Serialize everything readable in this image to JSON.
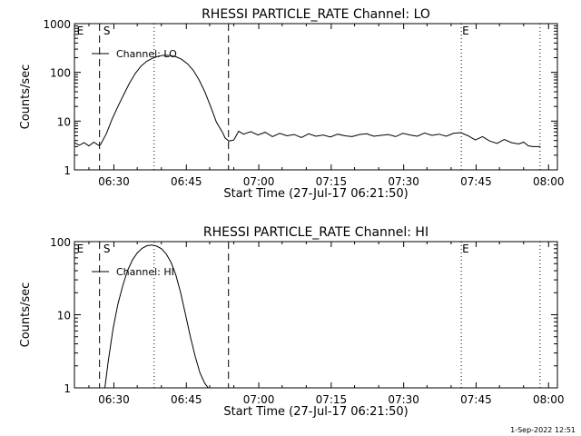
{
  "colors": {
    "background": "#ffffff",
    "foreground": "#000000"
  },
  "footer": {
    "timestamp": "1-Sep-2022 12:51"
  },
  "chart_data": [
    {
      "type": "line",
      "title": "RHESSI PARTICLE_RATE Channel: LO",
      "xlabel": "Start Time (27-Jul-17 06:21:50)",
      "ylabel": "Counts/sec",
      "y_scale": "log",
      "ylim": [
        1,
        1000
      ],
      "x_unit": "minutes after 06:21:50",
      "xlim": [
        0,
        100
      ],
      "x_ticks": [
        {
          "x": 8.17,
          "label": "06:30"
        },
        {
          "x": 23.17,
          "label": "06:45"
        },
        {
          "x": 38.17,
          "label": "07:00"
        },
        {
          "x": 53.17,
          "label": "07:15"
        },
        {
          "x": 68.17,
          "label": "07:30"
        },
        {
          "x": 83.17,
          "label": "07:45"
        },
        {
          "x": 98.17,
          "label": "08:00"
        }
      ],
      "y_ticks": [
        {
          "y": 1,
          "label": "1"
        },
        {
          "y": 10,
          "label": "10"
        },
        {
          "y": 100,
          "label": "100"
        },
        {
          "y": 1000,
          "label": "1000"
        }
      ],
      "legend": {
        "position": "top-left",
        "entries": [
          "Channel: LO"
        ]
      },
      "markers": [
        {
          "label": "E",
          "x": 0.3
        },
        {
          "label": "S",
          "x": 5.8
        },
        {
          "label": "E",
          "x": 80.1
        }
      ],
      "vlines_dashed": [
        5.2,
        31.9
      ],
      "vlines_dotted": [
        16.5,
        80.1,
        96.4
      ],
      "series": [
        {
          "x": [
            0,
            1,
            2,
            3,
            4,
            5,
            5.4,
            6.6,
            7.8,
            9.0,
            10.2,
            11.4,
            12.6,
            13.8,
            15.0,
            16.2,
            17.4,
            18.6,
            19.8,
            21.0,
            22.2,
            23.4,
            24.6,
            25.8,
            27.0,
            28.2,
            29.4,
            30.6,
            31.2,
            32.0,
            33.0,
            34.0,
            35.0,
            36.5,
            38,
            39.5,
            41,
            42.5,
            44,
            45.5,
            47,
            48.5,
            50,
            51.5,
            53,
            54.5,
            56,
            57.5,
            59,
            60.5,
            62,
            63.5,
            65,
            66.5,
            68,
            69.5,
            71,
            72.5,
            74,
            75.5,
            77,
            78.5,
            80,
            81.5,
            83,
            84.5,
            86,
            87.5,
            89,
            90.5,
            92,
            93,
            94,
            95,
            96.5
          ],
          "y": [
            3.6,
            3.2,
            3.6,
            3.1,
            3.7,
            3.2,
            3.3,
            5.5,
            11,
            20,
            35,
            60,
            95,
            135,
            170,
            195,
            215,
            225,
            222,
            210,
            185,
            150,
            110,
            70,
            40,
            20,
            9.5,
            6.0,
            4.5,
            3.9,
            4.1,
            6.2,
            5.4,
            6.1,
            5.2,
            5.9,
            4.8,
            5.6,
            5.0,
            5.3,
            4.6,
            5.5,
            4.9,
            5.2,
            4.7,
            5.4,
            5.0,
            4.8,
            5.3,
            5.5,
            4.9,
            5.1,
            5.3,
            4.8,
            5.6,
            5.2,
            4.9,
            5.7,
            5.1,
            5.4,
            4.9,
            5.6,
            5.8,
            5.0,
            4.1,
            4.8,
            3.9,
            3.5,
            4.2,
            3.6,
            3.4,
            3.7,
            3.1,
            3.0,
            3.0
          ]
        }
      ]
    },
    {
      "type": "line",
      "title": "RHESSI PARTICLE_RATE Channel: HI",
      "xlabel": "Start Time (27-Jul-17 06:21:50)",
      "ylabel": "Counts/sec",
      "y_scale": "log",
      "ylim": [
        1,
        100
      ],
      "x_unit": "minutes after 06:21:50",
      "xlim": [
        0,
        100
      ],
      "x_ticks": [
        {
          "x": 8.17,
          "label": "06:30"
        },
        {
          "x": 23.17,
          "label": "06:45"
        },
        {
          "x": 38.17,
          "label": "07:00"
        },
        {
          "x": 53.17,
          "label": "07:15"
        },
        {
          "x": 68.17,
          "label": "07:30"
        },
        {
          "x": 83.17,
          "label": "07:45"
        },
        {
          "x": 98.17,
          "label": "08:00"
        }
      ],
      "y_ticks": [
        {
          "y": 1,
          "label": "1"
        },
        {
          "y": 10,
          "label": "10"
        },
        {
          "y": 100,
          "label": "100"
        }
      ],
      "legend": {
        "position": "top-left",
        "entries": [
          "Channel: HI"
        ]
      },
      "markers": [
        {
          "label": "E",
          "x": 0.3
        },
        {
          "label": "S",
          "x": 5.8
        },
        {
          "label": "E",
          "x": 80.1
        }
      ],
      "vlines_dashed": [
        5.2,
        31.9
      ],
      "vlines_dotted": [
        16.5,
        80.1,
        96.4
      ],
      "series": [
        {
          "x": [
            6.3,
            7.0,
            8.0,
            9.0,
            10.0,
            11.0,
            12.0,
            13.0,
            14.0,
            15.0,
            16.0,
            17.0,
            18.0,
            19.0,
            20.0,
            21.0,
            22.0,
            23.0,
            24.0,
            25.0,
            26.0,
            27.0,
            27.7
          ],
          "y": [
            1.0,
            2.3,
            6.5,
            14,
            25,
            40,
            56,
            70,
            81,
            88,
            90,
            87,
            80,
            68,
            52,
            35,
            20,
            10,
            5.0,
            2.7,
            1.6,
            1.15,
            1.0
          ]
        }
      ]
    }
  ]
}
